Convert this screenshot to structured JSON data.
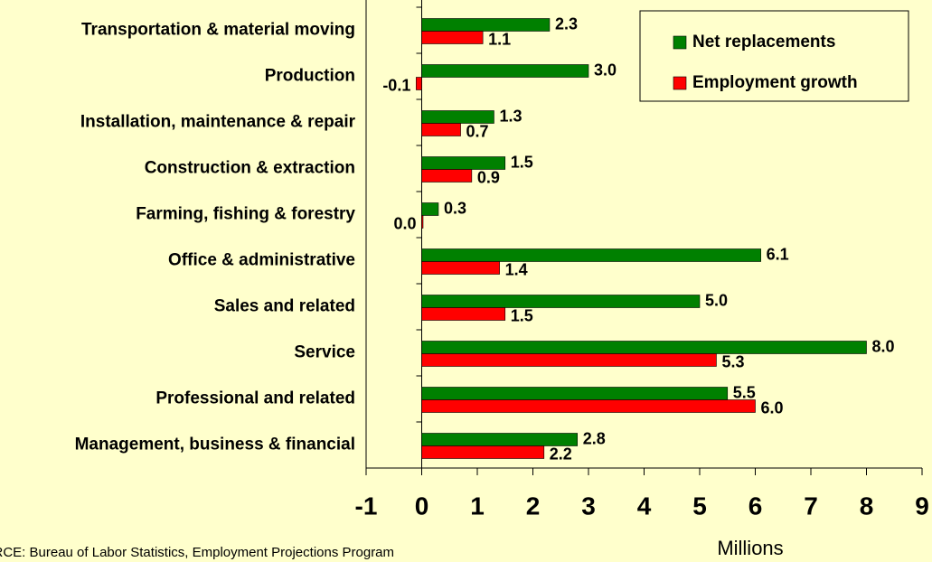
{
  "chart_data": {
    "type": "hbar",
    "categories": [
      "Transportation & material moving",
      "Production",
      "Installation, maintenance & repair",
      "Construction & extraction",
      "Farming, fishing & forestry",
      "Office & administrative",
      "Sales and related",
      "Service",
      "Professional and related",
      "Management, business & financial"
    ],
    "series": [
      {
        "name": "Net replacements",
        "color": "#008000",
        "values": [
          2.3,
          3.0,
          1.3,
          1.5,
          0.3,
          6.1,
          5.0,
          8.0,
          5.5,
          2.8
        ],
        "value_labels": [
          "2.3",
          "3.0",
          "1.3",
          "1.5",
          "0.3",
          "6.1",
          "5.0",
          "8.0",
          "5.5",
          "2.8"
        ]
      },
      {
        "name": "Employment growth",
        "color": "#ff0000",
        "values": [
          1.1,
          -0.1,
          0.7,
          0.9,
          0.0,
          1.4,
          1.5,
          5.3,
          6.0,
          2.2
        ],
        "value_labels": [
          "1.1",
          "-0.1",
          "0.7",
          "0.9",
          "0.0",
          "1.4",
          "1.5",
          "5.3",
          "6.0",
          "2.2"
        ]
      }
    ],
    "xlim": [
      -1,
      9
    ],
    "xticks": [
      -1,
      0,
      1,
      2,
      3,
      4,
      5,
      6,
      7,
      8,
      9
    ],
    "xlabel": "Millions",
    "source": "SOURCE:   Bureau of Labor Statistics, Employment Projections Program",
    "legend": "upper right"
  }
}
